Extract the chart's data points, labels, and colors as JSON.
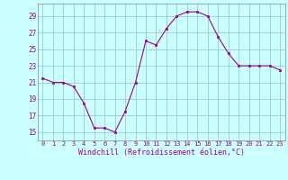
{
  "x": [
    0,
    1,
    2,
    3,
    4,
    5,
    6,
    7,
    8,
    9,
    10,
    11,
    12,
    13,
    14,
    15,
    16,
    17,
    18,
    19,
    20,
    21,
    22,
    23
  ],
  "y": [
    21.5,
    21.0,
    21.0,
    20.5,
    18.5,
    15.5,
    15.5,
    15.0,
    17.5,
    21.0,
    26.0,
    25.5,
    27.5,
    29.0,
    29.5,
    29.5,
    29.0,
    26.5,
    24.5,
    23.0,
    23.0,
    23.0,
    23.0,
    22.5
  ],
  "line_color": "#990099",
  "marker": "s",
  "markersize": 1.8,
  "linewidth": 0.8,
  "background_color": "#ccffff",
  "grid_color": "#99cccc",
  "xlabel": "Windchill (Refroidissement éolien,°C)",
  "xlabel_color": "#990099",
  "tick_color": "#990099",
  "ylabel_ticks": [
    15,
    17,
    19,
    21,
    23,
    25,
    27,
    29
  ],
  "xlim": [
    -0.5,
    23.5
  ],
  "ylim": [
    14.0,
    30.5
  ],
  "xtick_labels": [
    "0",
    "1",
    "2",
    "3",
    "4",
    "5",
    "6",
    "7",
    "8",
    "9",
    "10",
    "11",
    "12",
    "13",
    "14",
    "15",
    "16",
    "17",
    "18",
    "19",
    "20",
    "21",
    "22",
    "23"
  ],
  "ytick_fontsize": 5.5,
  "xtick_fontsize": 5.0,
  "xlabel_fontsize": 6.0
}
